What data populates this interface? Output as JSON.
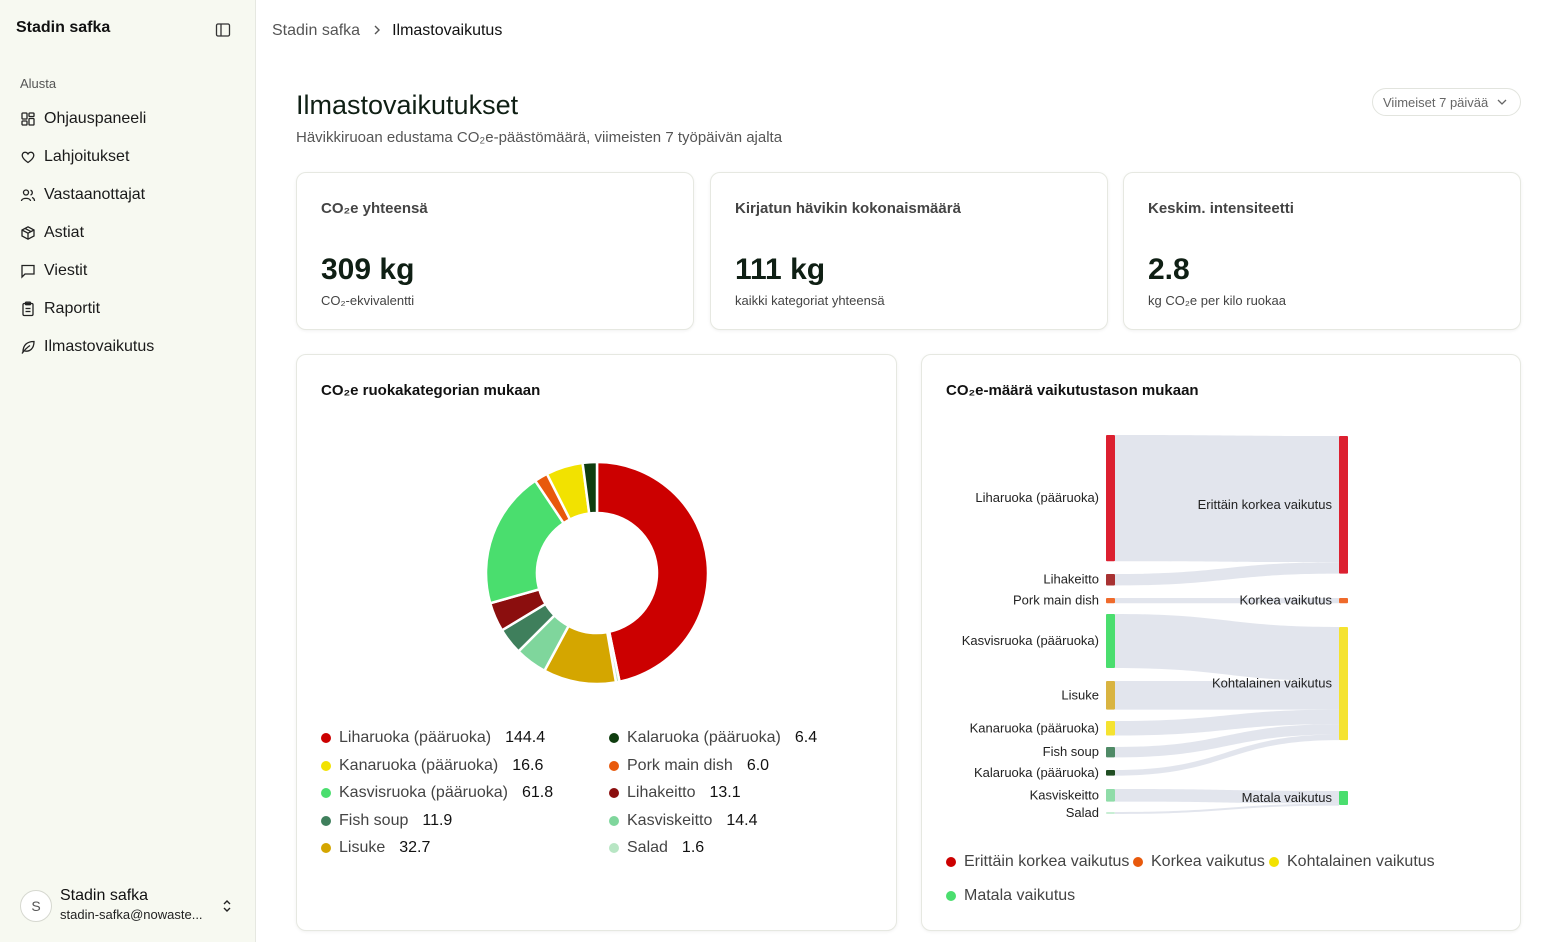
{
  "sidebar": {
    "brand": "Stadin safka",
    "section_label": "Alusta",
    "items": [
      {
        "label": "Ohjauspaneeli",
        "icon": "dashboard-icon"
      },
      {
        "label": "Lahjoitukset",
        "icon": "heart-icon"
      },
      {
        "label": "Vastaanottajat",
        "icon": "users-icon"
      },
      {
        "label": "Astiat",
        "icon": "box-icon"
      },
      {
        "label": "Viestit",
        "icon": "message-icon"
      },
      {
        "label": "Raportit",
        "icon": "clipboard-icon"
      },
      {
        "label": "Ilmastovaikutus",
        "icon": "leaf-icon"
      }
    ],
    "user": {
      "initial": "S",
      "name": "Stadin safka",
      "email": "stadin-safka@nowaste..."
    }
  },
  "breadcrumb": {
    "root": "Stadin safka",
    "current": "Ilmastovaikutus"
  },
  "header": {
    "title": "Ilmastovaikutukset",
    "subtitle": "Hävikkiruoan edustama CO₂e-päästömäärä, viimeisten 7 työpäivän ajalta",
    "range_label": "Viimeiset 7 päivää"
  },
  "kpis": [
    {
      "label": "CO₂e yhteensä",
      "value": "309 kg",
      "note": "CO₂-ekvivalentti"
    },
    {
      "label": "Kirjatun hävikin kokonaismäärä",
      "value": "111 kg",
      "note": "kaikki kategoriat yhteensä"
    },
    {
      "label": "Keskim. intensiteetti",
      "value": "2.8",
      "note": "kg CO₂e per kilo ruokaa"
    }
  ],
  "donut_card": {
    "title": "CO₂e ruokakategorian mukaan"
  },
  "sankey_card": {
    "title": "CO₂e-määrä vaikutustason mukaan"
  },
  "chart_data": [
    {
      "type": "pie",
      "variant": "donut",
      "title": "CO₂e ruokakategorian mukaan",
      "slices": [
        {
          "label": "Liharuoka (pääruoka)",
          "value": 144.4,
          "value_text": "144.4",
          "color": "#cc0000"
        },
        {
          "label": "Salad",
          "value": 1.6,
          "value_text": "1.6",
          "color": "#b8e6c4"
        },
        {
          "label": "Lisuke",
          "value": 32.7,
          "value_text": "32.7",
          "color": "#d4a600"
        },
        {
          "label": "Kasviskeitto",
          "value": 14.4,
          "value_text": "14.4",
          "color": "#7fd69c"
        },
        {
          "label": "Fish soup",
          "value": 11.9,
          "value_text": "11.9",
          "color": "#3f7f5c"
        },
        {
          "label": "Lihakeitto",
          "value": 13.1,
          "value_text": "13.1",
          "color": "#8b0e0e"
        },
        {
          "label": "Kasvisruoka (pääruoka)",
          "value": 61.8,
          "value_text": "61.8",
          "color": "#4ade6e"
        },
        {
          "label": "Pork main dish",
          "value": 6.0,
          "value_text": "6.0",
          "color": "#e8590c"
        },
        {
          "label": "Kanaruoka (pääruoka)",
          "value": 16.6,
          "value_text": "16.6",
          "color": "#f2e200"
        },
        {
          "label": "Kalaruoka (pääruoka)",
          "value": 6.4,
          "value_text": "6.4",
          "color": "#0f3d0f"
        }
      ],
      "legend_order": [
        "Liharuoka (pääruoka)",
        "Kalaruoka (pääruoka)",
        "Kanaruoka (pääruoka)",
        "Pork main dish",
        "Kasvisruoka (pääruoka)",
        "Lihakeitto",
        "Fish soup",
        "Kasviskeitto",
        "Lisuke",
        "Salad"
      ]
    },
    {
      "type": "sankey",
      "title": "CO₂e-määrä vaikutustason mukaan",
      "sources": [
        {
          "label": "Liharuoka (pääruoka)",
          "value": 144.4,
          "target": "Erittäin korkea vaikutus",
          "color": "#dc2030"
        },
        {
          "label": "Lihakeitto",
          "value": 13.1,
          "target": "Erittäin korkea vaikutus",
          "color": "#a83232"
        },
        {
          "label": "Pork main dish",
          "value": 6.0,
          "target": "Korkea vaikutus",
          "color": "#ef6a2b"
        },
        {
          "label": "Kasvisruoka (pääruoka)",
          "value": 61.8,
          "target": "Kohtalainen vaikutus",
          "color": "#4ade6e"
        },
        {
          "label": "Lisuke",
          "value": 32.7,
          "target": "Kohtalainen vaikutus",
          "color": "#d9b441"
        },
        {
          "label": "Kanaruoka (pääruoka)",
          "value": 16.6,
          "target": "Kohtalainen vaikutus",
          "color": "#f5e330"
        },
        {
          "label": "Fish soup",
          "value": 11.9,
          "target": "Kohtalainen vaikutus",
          "color": "#4f8a66"
        },
        {
          "label": "Kalaruoka (pääruoka)",
          "value": 6.4,
          "target": "Kohtalainen vaikutus",
          "color": "#1f4d22"
        },
        {
          "label": "Kasviskeitto",
          "value": 14.4,
          "target": "Matala vaikutus",
          "color": "#8fdca8"
        },
        {
          "label": "Salad",
          "value": 1.6,
          "target": "Matala vaikutus",
          "color": "#c8eed4"
        }
      ],
      "targets": [
        {
          "label": "Erittäin korkea vaikutus",
          "value": 157.5,
          "color": "#dc2030"
        },
        {
          "label": "Korkea vaikutus",
          "value": 6.0,
          "color": "#ef6a2b"
        },
        {
          "label": "Kohtalainen vaikutus",
          "value": 129.4,
          "color": "#f5e330"
        },
        {
          "label": "Matala vaikutus",
          "value": 16.0,
          "color": "#4ade6e"
        }
      ],
      "legend": [
        {
          "label": "Erittäin korkea vaikutus",
          "color": "#cc0000"
        },
        {
          "label": "Korkea vaikutus",
          "color": "#e8590c"
        },
        {
          "label": "Kohtalainen vaikutus",
          "color": "#f2e200"
        },
        {
          "label": "Matala vaikutus",
          "color": "#4ade6e"
        }
      ]
    }
  ]
}
